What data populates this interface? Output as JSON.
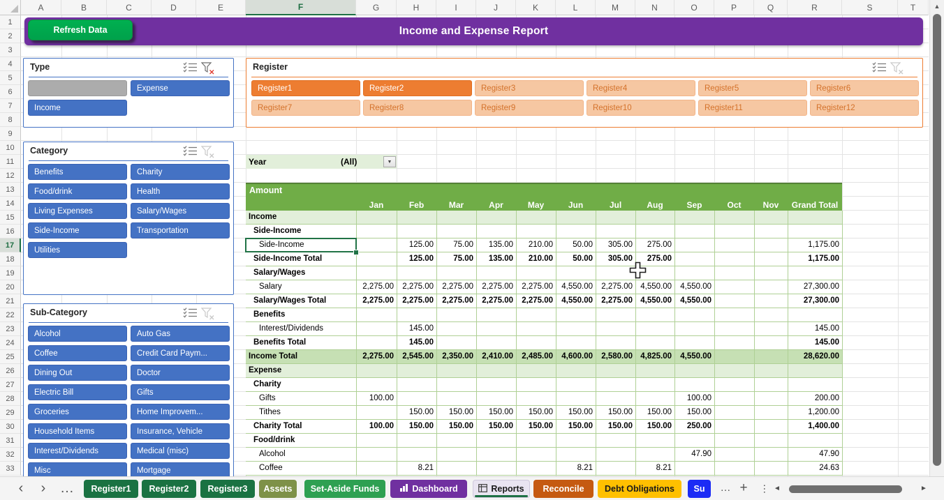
{
  "header": {
    "title": "Income and Expense Report",
    "refresh_button": "Refresh Data"
  },
  "grid": {
    "column_letters": [
      "A",
      "B",
      "C",
      "D",
      "E",
      "F",
      "G",
      "H",
      "I",
      "J",
      "K",
      "L",
      "M",
      "N",
      "O",
      "P",
      "Q",
      "R",
      "S",
      "T"
    ],
    "row_numbers": [
      1,
      2,
      3,
      4,
      5,
      6,
      7,
      8,
      9,
      10,
      11,
      12,
      13,
      14,
      15,
      16,
      17,
      18,
      19,
      20,
      21,
      22,
      23,
      24,
      25,
      26,
      27,
      28,
      29,
      30,
      31,
      32,
      33
    ],
    "selected_column": "F",
    "selected_row": 17
  },
  "slicers": {
    "type": {
      "title": "Type",
      "filter_active": true,
      "items": [
        {
          "label": "",
          "state": "blank"
        },
        {
          "label": "Expense",
          "state": "selected"
        },
        {
          "label": "Income",
          "state": "selected"
        }
      ]
    },
    "register": {
      "title": "Register",
      "filter_active": false,
      "items": [
        {
          "label": "Register1",
          "state": "selected"
        },
        {
          "label": "Register2",
          "state": "selected"
        },
        {
          "label": "Register3",
          "state": "unselected"
        },
        {
          "label": "Register4",
          "state": "unselected"
        },
        {
          "label": "Register5",
          "state": "unselected"
        },
        {
          "label": "Register6",
          "state": "unselected"
        },
        {
          "label": "Register7",
          "state": "unselected"
        },
        {
          "label": "Register8",
          "state": "unselected"
        },
        {
          "label": "Register9",
          "state": "unselected"
        },
        {
          "label": "Register10",
          "state": "unselected"
        },
        {
          "label": "Register11",
          "state": "unselected"
        },
        {
          "label": "Register12",
          "state": "unselected"
        }
      ]
    },
    "category": {
      "title": "Category",
      "filter_active": false,
      "items": [
        {
          "label": "Benefits",
          "state": "selected"
        },
        {
          "label": "Charity",
          "state": "selected"
        },
        {
          "label": "Food/drink",
          "state": "selected"
        },
        {
          "label": "Health",
          "state": "selected"
        },
        {
          "label": "Living Expenses",
          "state": "selected"
        },
        {
          "label": "Salary/Wages",
          "state": "selected"
        },
        {
          "label": "Side-Income",
          "state": "selected"
        },
        {
          "label": "Transportation",
          "state": "selected"
        },
        {
          "label": "Utilities",
          "state": "selected"
        }
      ]
    },
    "subcategory": {
      "title": "Sub-Category",
      "filter_active": false,
      "items": [
        {
          "label": "Alcohol",
          "state": "selected"
        },
        {
          "label": "Auto Gas",
          "state": "selected"
        },
        {
          "label": "Coffee",
          "state": "selected"
        },
        {
          "label": "Credit Card Paym...",
          "state": "selected"
        },
        {
          "label": "Dining Out",
          "state": "selected"
        },
        {
          "label": "Doctor",
          "state": "selected"
        },
        {
          "label": "Electric Bill",
          "state": "selected"
        },
        {
          "label": "Gifts",
          "state": "selected"
        },
        {
          "label": "Groceries",
          "state": "selected"
        },
        {
          "label": "Home Improvem...",
          "state": "selected"
        },
        {
          "label": "Household Items",
          "state": "selected"
        },
        {
          "label": "Insurance, Vehicle",
          "state": "selected"
        },
        {
          "label": "Interest/Dividends",
          "state": "selected"
        },
        {
          "label": "Medical (misc)",
          "state": "selected"
        },
        {
          "label": "Misc",
          "state": "selected"
        },
        {
          "label": "Mortgage",
          "state": "selected"
        }
      ]
    }
  },
  "year_filter": {
    "label": "Year",
    "value": "(All)"
  },
  "pivot": {
    "value_header": "Amount",
    "col_headers": [
      "Jan",
      "Feb",
      "Mar",
      "Apr",
      "May",
      "Jun",
      "Jul",
      "Aug",
      "Sep",
      "Oct",
      "Nov",
      "Grand Total"
    ],
    "rows": [
      {
        "label": "Income",
        "style": "type",
        "values": [
          "",
          "",
          "",
          "",
          "",
          "",
          "",
          "",
          "",
          "",
          "",
          ""
        ]
      },
      {
        "label": "Side-Income",
        "style": "group",
        "values": [
          "",
          "",
          "",
          "",
          "",
          "",
          "",
          "",
          "",
          "",
          "",
          ""
        ]
      },
      {
        "label": "Side-Income",
        "style": "item",
        "selected": true,
        "values": [
          "",
          "125.00",
          "75.00",
          "135.00",
          "210.00",
          "50.00",
          "305.00",
          "275.00",
          "",
          "",
          "",
          "1,175.00"
        ]
      },
      {
        "label": "Side-Income Total",
        "style": "total",
        "values": [
          "",
          "125.00",
          "75.00",
          "135.00",
          "210.00",
          "50.00",
          "305.00",
          "275.00",
          "",
          "",
          "",
          "1,175.00"
        ]
      },
      {
        "label": "Salary/Wages",
        "style": "group",
        "values": [
          "",
          "",
          "",
          "",
          "",
          "",
          "",
          "",
          "",
          "",
          "",
          ""
        ]
      },
      {
        "label": "Salary",
        "style": "item",
        "values": [
          "2,275.00",
          "2,275.00",
          "2,275.00",
          "2,275.00",
          "2,275.00",
          "4,550.00",
          "2,275.00",
          "4,550.00",
          "4,550.00",
          "",
          "",
          "27,300.00"
        ]
      },
      {
        "label": "Salary/Wages Total",
        "style": "total",
        "values": [
          "2,275.00",
          "2,275.00",
          "2,275.00",
          "2,275.00",
          "2,275.00",
          "4,550.00",
          "2,275.00",
          "4,550.00",
          "4,550.00",
          "",
          "",
          "27,300.00"
        ]
      },
      {
        "label": "Benefits",
        "style": "group",
        "values": [
          "",
          "",
          "",
          "",
          "",
          "",
          "",
          "",
          "",
          "",
          "",
          ""
        ]
      },
      {
        "label": "Interest/Dividends",
        "style": "item",
        "values": [
          "",
          "145.00",
          "",
          "",
          "",
          "",
          "",
          "",
          "",
          "",
          "",
          "145.00"
        ]
      },
      {
        "label": "Benefits Total",
        "style": "total",
        "values": [
          "",
          "145.00",
          "",
          "",
          "",
          "",
          "",
          "",
          "",
          "",
          "",
          "145.00"
        ]
      },
      {
        "label": "Income Total",
        "style": "grandtotal",
        "values": [
          "2,275.00",
          "2,545.00",
          "2,350.00",
          "2,410.00",
          "2,485.00",
          "4,600.00",
          "2,580.00",
          "4,825.00",
          "4,550.00",
          "",
          "",
          "28,620.00"
        ]
      },
      {
        "label": "Expense",
        "style": "type",
        "values": [
          "",
          "",
          "",
          "",
          "",
          "",
          "",
          "",
          "",
          "",
          "",
          ""
        ]
      },
      {
        "label": "Charity",
        "style": "group",
        "values": [
          "",
          "",
          "",
          "",
          "",
          "",
          "",
          "",
          "",
          "",
          "",
          ""
        ]
      },
      {
        "label": "Gifts",
        "style": "item",
        "values": [
          "100.00",
          "",
          "",
          "",
          "",
          "",
          "",
          "",
          "100.00",
          "",
          "",
          "200.00"
        ]
      },
      {
        "label": "Tithes",
        "style": "item",
        "values": [
          "",
          "150.00",
          "150.00",
          "150.00",
          "150.00",
          "150.00",
          "150.00",
          "150.00",
          "150.00",
          "",
          "",
          "1,200.00"
        ]
      },
      {
        "label": "Charity Total",
        "style": "total",
        "values": [
          "100.00",
          "150.00",
          "150.00",
          "150.00",
          "150.00",
          "150.00",
          "150.00",
          "150.00",
          "250.00",
          "",
          "",
          "1,400.00"
        ]
      },
      {
        "label": "Food/drink",
        "style": "group",
        "values": [
          "",
          "",
          "",
          "",
          "",
          "",
          "",
          "",
          "",
          "",
          "",
          ""
        ]
      },
      {
        "label": "Alcohol",
        "style": "item",
        "values": [
          "",
          "",
          "",
          "",
          "",
          "",
          "",
          "",
          "47.90",
          "",
          "",
          "47.90"
        ]
      },
      {
        "label": "Coffee",
        "style": "item",
        "values": [
          "",
          "8.21",
          "",
          "",
          "",
          "8.21",
          "",
          "8.21",
          "",
          "",
          "",
          "24.63"
        ]
      }
    ]
  },
  "sheet_tabs": {
    "tabs": [
      {
        "label": "Register1",
        "bg": "#1A7242",
        "fg": "#FFFFFF"
      },
      {
        "label": "Register2",
        "bg": "#1A7242",
        "fg": "#FFFFFF"
      },
      {
        "label": "Register3",
        "bg": "#1A7242",
        "fg": "#FFFFFF"
      },
      {
        "label": "Assets",
        "bg": "#7E9148",
        "fg": "#FFFFFF"
      },
      {
        "label": "Set-Aside Funds",
        "bg": "#2EA052",
        "fg": "#FFFFFF"
      },
      {
        "label": "Dashboard",
        "bg": "#7030A0",
        "fg": "#FFFFFF",
        "icon": "dashboard-chart-icon"
      },
      {
        "label": "Reports",
        "bg": "#E9E4F1",
        "fg": "#1A1A1A",
        "icon": "pivot-table-icon",
        "active": true,
        "underline": "#1E7145"
      },
      {
        "label": "Reconcile",
        "bg": "#C55A11",
        "fg": "#FFFFFF"
      },
      {
        "label": "Debt Obligations",
        "bg": "#FFC000",
        "fg": "#1A1A1A"
      },
      {
        "label": "Su",
        "bg": "#1B2BF5",
        "fg": "#FFFFFF",
        "truncated": true
      }
    ]
  },
  "colors": {
    "banner_purple": "#7030A0",
    "refresh_green": "#00B050",
    "slicer_blue": "#4472C4",
    "slicer_blue_border": "#3A62B4",
    "slicer_blank_gray": "#ACACAC",
    "orange_selected": "#ED7D31",
    "orange_unselected_bg": "#F6C7A2",
    "orange_unselected_text": "#D4722B",
    "pivot_header_green": "#70AD47",
    "band_light_green": "#E2EFDA",
    "band_medium_green": "#C6E0B4",
    "pivot_grid_green": "#AFD095",
    "selection_green": "#217346",
    "clear_filter_red": "#E03C31"
  }
}
